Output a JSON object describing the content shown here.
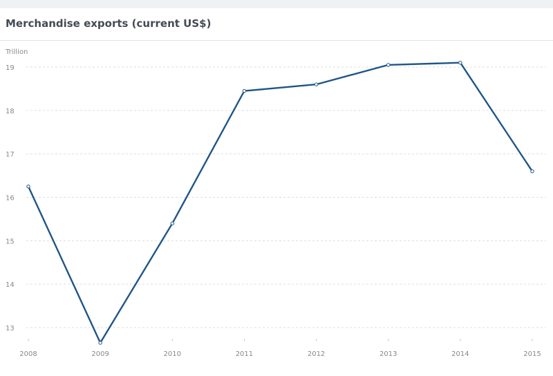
{
  "header": {
    "title": "Merchandise exports (current US$)"
  },
  "chart_data": {
    "type": "line",
    "title": "Merchandise exports (current US$)",
    "unit_label": "Trillion",
    "xlabel": "",
    "ylabel": "",
    "categories": [
      "2008",
      "2009",
      "2010",
      "2011",
      "2012",
      "2013",
      "2014",
      "2015"
    ],
    "series": [
      {
        "values": [
          16.25,
          12.65,
          15.4,
          18.45,
          18.6,
          19.05,
          19.1,
          16.6
        ]
      }
    ],
    "ylim": [
      12.6,
      19.4
    ],
    "yticks": [
      13,
      14,
      15,
      16,
      17,
      18,
      19
    ],
    "grid": true,
    "legend": "none",
    "colors": {
      "line": "#1f5588",
      "grid": "#dedede",
      "text": "#888888"
    }
  }
}
